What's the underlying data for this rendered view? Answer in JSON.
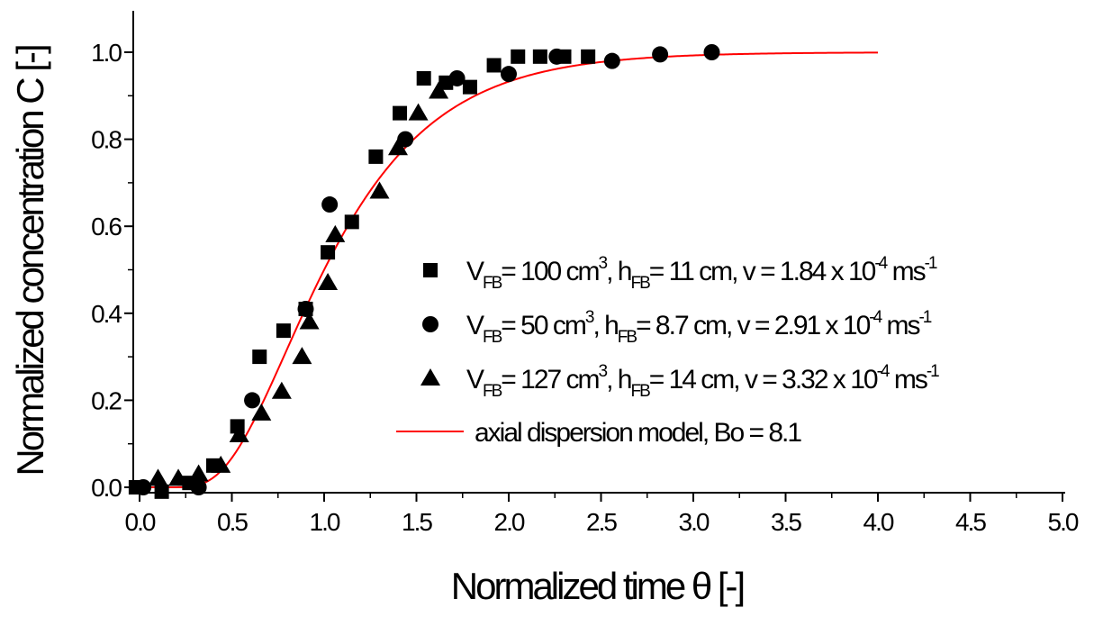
{
  "chart_data": {
    "type": "scatter",
    "title": "",
    "xlabel": "Normalized time θ [-]",
    "ylabel": "Normalized concentration C [-]",
    "xlim": [
      -0.05,
      5.0
    ],
    "ylim": [
      -0.02,
      1.1
    ],
    "x_ticks": [
      "0.0",
      "0.5",
      "1.0",
      "1.5",
      "2.0",
      "2.5",
      "3.0",
      "3.5",
      "4.0",
      "4.5",
      "5.0"
    ],
    "y_ticks": [
      "0.0",
      "0.2",
      "0.4",
      "0.6",
      "0.8",
      "1.0"
    ],
    "grid": false,
    "legend_position": "center-right",
    "series": [
      {
        "name": "V_FB = 100 cm³, h_FB = 11 cm, v = 1.84 x 10⁻⁴ ms⁻¹",
        "marker": "square",
        "color": "#000000",
        "points": [
          [
            -0.02,
            0.0
          ],
          [
            0.12,
            -0.01
          ],
          [
            0.27,
            0.01
          ],
          [
            0.4,
            0.05
          ],
          [
            0.53,
            0.14
          ],
          [
            0.65,
            0.3
          ],
          [
            0.78,
            0.36
          ],
          [
            0.9,
            0.41
          ],
          [
            1.02,
            0.54
          ],
          [
            1.15,
            0.61
          ],
          [
            1.28,
            0.76
          ],
          [
            1.41,
            0.86
          ],
          [
            1.54,
            0.94
          ],
          [
            1.66,
            0.93
          ],
          [
            1.79,
            0.92
          ],
          [
            1.92,
            0.97
          ],
          [
            2.05,
            0.99
          ],
          [
            2.17,
            0.99
          ],
          [
            2.3,
            0.99
          ],
          [
            2.43,
            0.99
          ]
        ]
      },
      {
        "name": "V_FB = 50 cm³, h_FB = 8.7 cm, v = 2.91 x 10⁻⁴ ms⁻¹",
        "marker": "circle",
        "color": "#000000",
        "points": [
          [
            0.02,
            0.0
          ],
          [
            0.32,
            0.0
          ],
          [
            0.61,
            0.2
          ],
          [
            0.9,
            0.41
          ],
          [
            1.03,
            0.65
          ],
          [
            1.44,
            0.8
          ],
          [
            1.72,
            0.94
          ],
          [
            2.0,
            0.95
          ],
          [
            2.26,
            0.99
          ],
          [
            2.56,
            0.98
          ],
          [
            2.82,
            0.995
          ],
          [
            3.1,
            1.0
          ]
        ]
      },
      {
        "name": "V_FB = 127 cm³, h_FB = 14 cm, v = 3.32 x 10⁻⁴ ms⁻¹",
        "marker": "triangle",
        "color": "#000000",
        "points": [
          [
            0.1,
            0.02
          ],
          [
            0.21,
            0.02
          ],
          [
            0.32,
            0.03
          ],
          [
            0.44,
            0.05
          ],
          [
            0.54,
            0.12
          ],
          [
            0.66,
            0.17
          ],
          [
            0.77,
            0.22
          ],
          [
            0.88,
            0.3
          ],
          [
            0.92,
            0.38
          ],
          [
            1.02,
            0.47
          ],
          [
            1.06,
            0.58
          ],
          [
            1.3,
            0.68
          ],
          [
            1.4,
            0.78
          ],
          [
            1.51,
            0.86
          ],
          [
            1.62,
            0.91
          ]
        ]
      }
    ],
    "model_curve": {
      "name": "axial dispersion model, Bo = 8.1",
      "color": "#ff0000",
      "Bo": 8.1,
      "x_range": [
        -0.02,
        4.0
      ]
    }
  },
  "legend": {
    "entries": [
      {
        "marker": "square",
        "main_before": "V",
        "sub1": "FB",
        "mid1": "= 100 cm",
        "sup1": "3",
        "mid2": ", h",
        "sub2": "FB",
        "mid3": "= 11 cm, v = 1.84 x 10",
        "sup2": "-4",
        "mid4": " ms",
        "sup3": "-1"
      },
      {
        "marker": "circle",
        "main_before": "V",
        "sub1": "FB",
        "mid1": "= 50 cm",
        "sup1": "3",
        "mid2": ", h",
        "sub2": "FB",
        "mid3": "= 8.7 cm, v = 2.91 x 10",
        "sup2": "-4",
        "mid4": " ms",
        "sup3": "-1"
      },
      {
        "marker": "triangle",
        "main_before": "V",
        "sub1": "FB",
        "mid1": "= 127 cm",
        "sup1": "3",
        "mid2": ", h",
        "sub2": "FB",
        "mid3": "= 14 cm, v = 3.32 x 10",
        "sup2": "-4",
        "mid4": " ms",
        "sup3": "-1"
      },
      {
        "marker": "line",
        "text": "axial dispersion model, Bo = 8.1"
      }
    ]
  }
}
